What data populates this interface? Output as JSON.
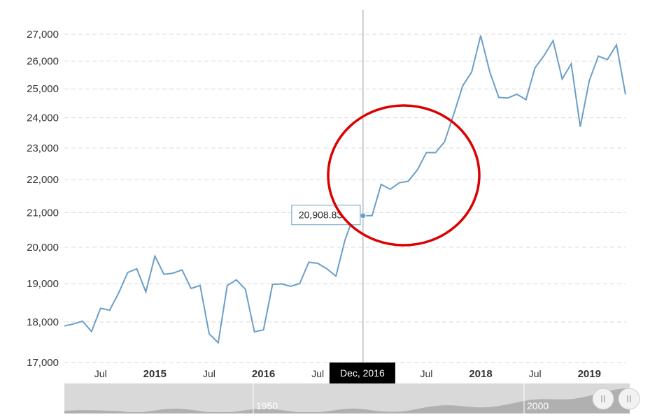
{
  "chart_data": {
    "type": "line",
    "series": [
      {
        "color": "#6b9ec8",
        "points": [
          [
            "2014-03",
            17900
          ],
          [
            "2014-04",
            17950
          ],
          [
            "2014-05",
            18020
          ],
          [
            "2014-06",
            17760
          ],
          [
            "2014-07",
            18350
          ],
          [
            "2014-08",
            18300
          ],
          [
            "2014-09",
            18750
          ],
          [
            "2014-10",
            19300
          ],
          [
            "2014-11",
            19400
          ],
          [
            "2014-12",
            18780
          ],
          [
            "2015-01",
            19750
          ],
          [
            "2015-02",
            19250
          ],
          [
            "2015-03",
            19280
          ],
          [
            "2015-04",
            19370
          ],
          [
            "2015-05",
            18870
          ],
          [
            "2015-06",
            18950
          ],
          [
            "2015-07",
            17700
          ],
          [
            "2015-08",
            17480
          ],
          [
            "2015-09",
            18950
          ],
          [
            "2015-10",
            19100
          ],
          [
            "2015-11",
            18850
          ],
          [
            "2015-12",
            17750
          ],
          [
            "2016-01",
            17800
          ],
          [
            "2016-02",
            18980
          ],
          [
            "2016-03",
            18990
          ],
          [
            "2016-04",
            18930
          ],
          [
            "2016-05",
            19000
          ],
          [
            "2016-06",
            19580
          ],
          [
            "2016-07",
            19550
          ],
          [
            "2016-08",
            19400
          ],
          [
            "2016-09",
            19200
          ],
          [
            "2016-10",
            20200
          ],
          [
            "2016-11",
            20908.83
          ],
          [
            "2016-12",
            20908.83
          ],
          [
            "2017-01",
            20910
          ],
          [
            "2017-02",
            21850
          ],
          [
            "2017-03",
            21700
          ],
          [
            "2017-04",
            21900
          ],
          [
            "2017-05",
            21950
          ],
          [
            "2017-06",
            22300
          ],
          [
            "2017-07",
            22850
          ],
          [
            "2017-08",
            22850
          ],
          [
            "2017-09",
            23200
          ],
          [
            "2017-10",
            24100
          ],
          [
            "2017-11",
            25100
          ],
          [
            "2017-12",
            25600
          ],
          [
            "2018-01",
            26950
          ],
          [
            "2018-02",
            25600
          ],
          [
            "2018-03",
            24700
          ],
          [
            "2018-04",
            24680
          ],
          [
            "2018-05",
            24810
          ],
          [
            "2018-06",
            24620
          ],
          [
            "2018-07",
            25750
          ],
          [
            "2018-08",
            26200
          ],
          [
            "2018-09",
            26760
          ],
          [
            "2018-10",
            25350
          ],
          [
            "2018-11",
            25900
          ],
          [
            "2018-12",
            23700
          ],
          [
            "2019-01",
            25300
          ],
          [
            "2019-02",
            26180
          ],
          [
            "2019-03",
            26050
          ],
          [
            "2019-04",
            26600
          ],
          [
            "2019-05",
            24800
          ]
        ]
      }
    ],
    "y_axis": {
      "ticks": [
        17000,
        18000,
        19000,
        20000,
        21000,
        22000,
        23000,
        24000,
        25000,
        26000,
        27000
      ],
      "tick_labels": [
        "17,000",
        "18,000",
        "19,000",
        "20,000",
        "21,000",
        "22,000",
        "23,000",
        "24,000",
        "25,000",
        "26,000",
        "27,000"
      ],
      "ylim": [
        17000,
        27000
      ],
      "scale": "log"
    },
    "x_axis": {
      "xlim": [
        "2014-03",
        "2019-05"
      ],
      "ticks": [
        {
          "date": "2014-07",
          "label": "Jul",
          "major": false
        },
        {
          "date": "2015-01",
          "label": "2015",
          "major": true
        },
        {
          "date": "2015-07",
          "label": "Jul",
          "major": false
        },
        {
          "date": "2016-01",
          "label": "2016",
          "major": true
        },
        {
          "date": "2016-07",
          "label": "Jul",
          "major": false
        },
        {
          "date": "2017-07",
          "label": "Jul",
          "major": false
        },
        {
          "date": "2018-01",
          "label": "2018",
          "major": true
        },
        {
          "date": "2018-07",
          "label": "Jul",
          "major": false
        },
        {
          "date": "2019-01",
          "label": "2019",
          "major": true
        }
      ]
    },
    "grid": true,
    "crosshair": {
      "date": "2016-12",
      "tooltip_value": "20,908.83",
      "x_label": "Dec, 2016"
    },
    "annotation": {
      "shape": "circle",
      "color": "#dd0000"
    },
    "navigator": {
      "labels": [
        "1950",
        "2000"
      ],
      "handle_icon": "grip-icon"
    }
  }
}
